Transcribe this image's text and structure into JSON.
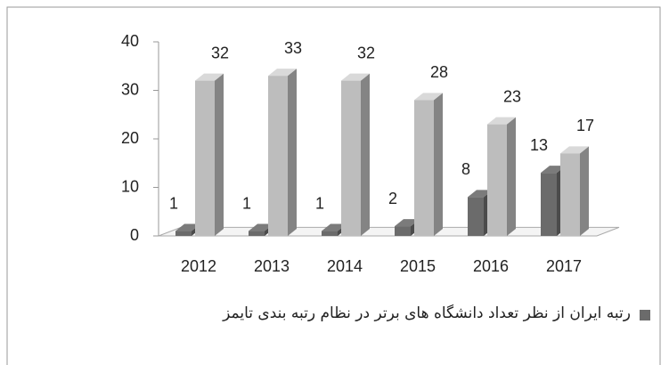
{
  "chart_data": {
    "type": "bar3d",
    "categories": [
      "2012",
      "2013",
      "2014",
      "2015",
      "2016",
      "2017"
    ],
    "series": [
      {
        "name": "رتبه ایران از نظر تعداد دانشگاه های برتر در نظام رتبه بندی تایمز",
        "color": "#6b6b6b",
        "values": [
          1,
          1,
          1,
          2,
          8,
          13
        ]
      },
      {
        "color": "#bdbdbd",
        "values": [
          32,
          33,
          32,
          28,
          23,
          17
        ]
      }
    ],
    "ylim": [
      0,
      40
    ],
    "yticks": [
      0,
      10,
      20,
      30,
      40
    ],
    "grid": false,
    "legend": "bottom"
  }
}
